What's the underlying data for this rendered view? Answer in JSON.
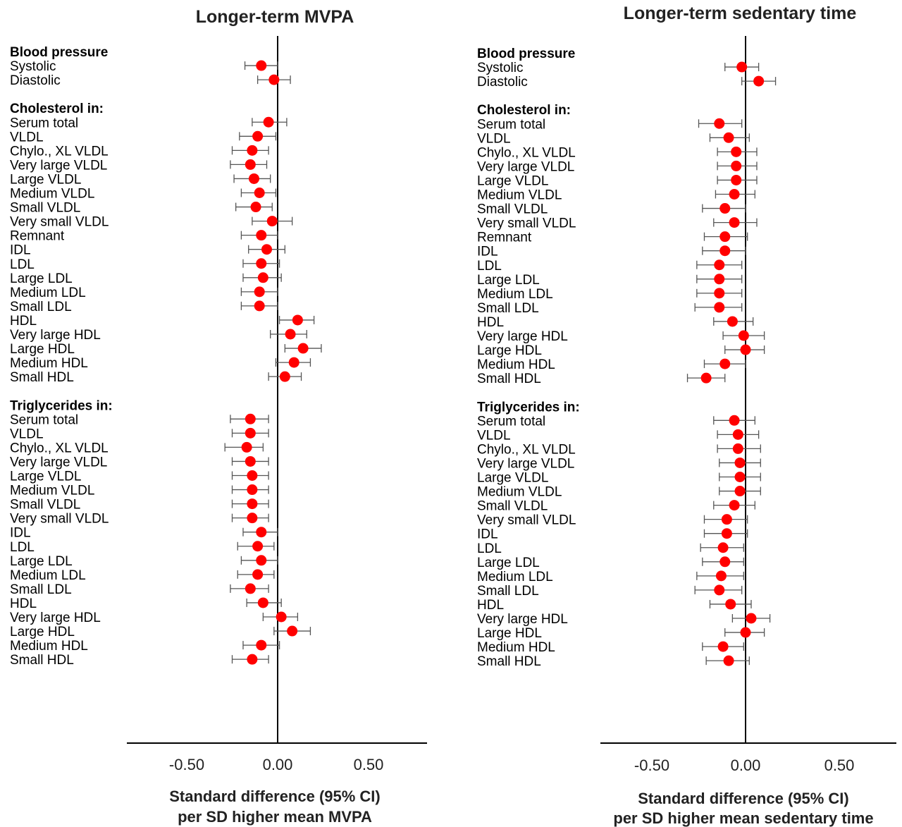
{
  "chart_data": [
    {
      "type": "forest",
      "title": "Longer-term MVPA",
      "xlabel_lines": [
        "Standard difference (95% CI)",
        "per SD higher mean MVPA"
      ],
      "xlim": [
        -0.8,
        0.8
      ],
      "xticks": [
        -0.5,
        0.0,
        0.5
      ],
      "xtick_labels": [
        "-0.50",
        "0.00",
        "0.50"
      ],
      "reference_line": 0.0,
      "marker_color": "#ff0000",
      "groups": [
        {
          "name": "Blood pressure",
          "rows": [
            {
              "label": "Systolic",
              "est": -0.09,
              "lo": -0.18,
              "hi": 0.0
            },
            {
              "label": "Diastolic",
              "est": -0.02,
              "lo": -0.11,
              "hi": 0.07
            }
          ]
        },
        {
          "name": "Cholesterol in:",
          "rows": [
            {
              "label": "Serum total",
              "est": -0.05,
              "lo": -0.14,
              "hi": 0.05
            },
            {
              "label": "VLDL",
              "est": -0.11,
              "lo": -0.21,
              "hi": -0.01
            },
            {
              "label": "Chylo., XL VLDL",
              "est": -0.14,
              "lo": -0.25,
              "hi": -0.05
            },
            {
              "label": "Very large VLDL",
              "est": -0.15,
              "lo": -0.26,
              "hi": -0.06
            },
            {
              "label": "Large VLDL",
              "est": -0.13,
              "lo": -0.24,
              "hi": -0.04
            },
            {
              "label": "Medium VLDL",
              "est": -0.1,
              "lo": -0.2,
              "hi": -0.01
            },
            {
              "label": "Small VLDL",
              "est": -0.12,
              "lo": -0.23,
              "hi": -0.03
            },
            {
              "label": "Very small VLDL",
              "est": -0.03,
              "lo": -0.14,
              "hi": 0.08
            },
            {
              "label": "Remnant",
              "est": -0.09,
              "lo": -0.2,
              "hi": 0.0
            },
            {
              "label": "IDL",
              "est": -0.06,
              "lo": -0.16,
              "hi": 0.04
            },
            {
              "label": "LDL",
              "est": -0.09,
              "lo": -0.19,
              "hi": 0.01
            },
            {
              "label": "Large LDL",
              "est": -0.08,
              "lo": -0.19,
              "hi": 0.02
            },
            {
              "label": "Medium LDL",
              "est": -0.1,
              "lo": -0.2,
              "hi": 0.0
            },
            {
              "label": "Small LDL",
              "est": -0.1,
              "lo": -0.2,
              "hi": 0.0
            },
            {
              "label": "HDL",
              "est": 0.11,
              "lo": 0.01,
              "hi": 0.2
            },
            {
              "label": "Very large HDL",
              "est": 0.07,
              "lo": -0.04,
              "hi": 0.16
            },
            {
              "label": "Large HDL",
              "est": 0.14,
              "lo": 0.04,
              "hi": 0.24
            },
            {
              "label": "Medium HDL",
              "est": 0.09,
              "lo": -0.01,
              "hi": 0.18
            },
            {
              "label": "Small HDL",
              "est": 0.04,
              "lo": -0.05,
              "hi": 0.13
            }
          ]
        },
        {
          "name": "Triglycerides in:",
          "rows": [
            {
              "label": "Serum total",
              "est": -0.15,
              "lo": -0.26,
              "hi": -0.05
            },
            {
              "label": "VLDL",
              "est": -0.15,
              "lo": -0.25,
              "hi": -0.05
            },
            {
              "label": "Chylo., XL VLDL",
              "est": -0.17,
              "lo": -0.29,
              "hi": -0.08
            },
            {
              "label": "Very large VLDL",
              "est": -0.15,
              "lo": -0.25,
              "hi": -0.05
            },
            {
              "label": "Large VLDL",
              "est": -0.14,
              "lo": -0.25,
              "hi": -0.05
            },
            {
              "label": "Medium VLDL",
              "est": -0.14,
              "lo": -0.25,
              "hi": -0.05
            },
            {
              "label": "Small VLDL",
              "est": -0.14,
              "lo": -0.25,
              "hi": -0.05
            },
            {
              "label": "Very small VLDL",
              "est": -0.14,
              "lo": -0.25,
              "hi": -0.05
            },
            {
              "label": "IDL",
              "est": -0.09,
              "lo": -0.19,
              "hi": 0.0
            },
            {
              "label": "LDL",
              "est": -0.11,
              "lo": -0.22,
              "hi": -0.02
            },
            {
              "label": "Large LDL",
              "est": -0.09,
              "lo": -0.2,
              "hi": 0.0
            },
            {
              "label": "Medium LDL",
              "est": -0.11,
              "lo": -0.22,
              "hi": -0.02
            },
            {
              "label": "Small LDL",
              "est": -0.15,
              "lo": -0.26,
              "hi": -0.05
            },
            {
              "label": "HDL",
              "est": -0.08,
              "lo": -0.17,
              "hi": 0.02
            },
            {
              "label": "Very large HDL",
              "est": 0.02,
              "lo": -0.08,
              "hi": 0.11
            },
            {
              "label": "Large HDL",
              "est": 0.08,
              "lo": -0.02,
              "hi": 0.18
            },
            {
              "label": "Medium HDL",
              "est": -0.09,
              "lo": -0.19,
              "hi": 0.01
            },
            {
              "label": "Small HDL",
              "est": -0.14,
              "lo": -0.25,
              "hi": -0.05
            }
          ]
        }
      ]
    },
    {
      "type": "forest",
      "title": "Longer-term sedentary time",
      "xlabel_lines": [
        "Standard difference (95% CI)",
        "per SD higher mean sedentary time"
      ],
      "xlim": [
        -0.8,
        0.8
      ],
      "xticks": [
        -0.5,
        0.0,
        0.5
      ],
      "xtick_labels": [
        "-0.50",
        "0.00",
        "0.50"
      ],
      "reference_line": 0.0,
      "marker_color": "#ff0000",
      "groups": [
        {
          "name": "Blood pressure",
          "rows": [
            {
              "label": "Systolic",
              "est": -0.02,
              "lo": -0.11,
              "hi": 0.07
            },
            {
              "label": "Diastolic",
              "est": 0.07,
              "lo": -0.02,
              "hi": 0.16
            }
          ]
        },
        {
          "name": "Cholesterol in:",
          "rows": [
            {
              "label": "Serum total",
              "est": -0.14,
              "lo": -0.25,
              "hi": -0.02
            },
            {
              "label": "VLDL",
              "est": -0.09,
              "lo": -0.19,
              "hi": 0.02
            },
            {
              "label": "Chylo., XL VLDL",
              "est": -0.05,
              "lo": -0.15,
              "hi": 0.06
            },
            {
              "label": "Very large VLDL",
              "est": -0.05,
              "lo": -0.15,
              "hi": 0.06
            },
            {
              "label": "Large VLDL",
              "est": -0.05,
              "lo": -0.15,
              "hi": 0.06
            },
            {
              "label": "Medium VLDL",
              "est": -0.06,
              "lo": -0.16,
              "hi": 0.05
            },
            {
              "label": "Small VLDL",
              "est": -0.11,
              "lo": -0.23,
              "hi": 0.0
            },
            {
              "label": "Very small VLDL",
              "est": -0.06,
              "lo": -0.17,
              "hi": 0.06
            },
            {
              "label": "Remnant",
              "est": -0.11,
              "lo": -0.22,
              "hi": 0.01
            },
            {
              "label": "IDL",
              "est": -0.11,
              "lo": -0.23,
              "hi": 0.0
            },
            {
              "label": "LDL",
              "est": -0.14,
              "lo": -0.26,
              "hi": -0.02
            },
            {
              "label": "Large LDL",
              "est": -0.14,
              "lo": -0.26,
              "hi": -0.02
            },
            {
              "label": "Medium LDL",
              "est": -0.14,
              "lo": -0.26,
              "hi": -0.02
            },
            {
              "label": "Small LDL",
              "est": -0.14,
              "lo": -0.27,
              "hi": -0.02
            },
            {
              "label": "HDL",
              "est": -0.07,
              "lo": -0.17,
              "hi": 0.04
            },
            {
              "label": "Very large HDL",
              "est": -0.01,
              "lo": -0.12,
              "hi": 0.1
            },
            {
              "label": "Large HDL",
              "est": 0.0,
              "lo": -0.11,
              "hi": 0.1
            },
            {
              "label": "Medium HDL",
              "est": -0.11,
              "lo": -0.22,
              "hi": 0.0
            },
            {
              "label": "Small HDL",
              "est": -0.21,
              "lo": -0.31,
              "hi": -0.11
            }
          ]
        },
        {
          "name": "Triglycerides in:",
          "rows": [
            {
              "label": "Serum total",
              "est": -0.06,
              "lo": -0.17,
              "hi": 0.05
            },
            {
              "label": "VLDL",
              "est": -0.04,
              "lo": -0.15,
              "hi": 0.07
            },
            {
              "label": "Chylo., XL VLDL",
              "est": -0.04,
              "lo": -0.15,
              "hi": 0.08
            },
            {
              "label": "Very large VLDL",
              "est": -0.03,
              "lo": -0.14,
              "hi": 0.08
            },
            {
              "label": "Large VLDL",
              "est": -0.03,
              "lo": -0.14,
              "hi": 0.08
            },
            {
              "label": "Medium VLDL",
              "est": -0.03,
              "lo": -0.14,
              "hi": 0.08
            },
            {
              "label": "Small VLDL",
              "est": -0.06,
              "lo": -0.17,
              "hi": 0.05
            },
            {
              "label": "Very small VLDL",
              "est": -0.1,
              "lo": -0.22,
              "hi": 0.01
            },
            {
              "label": "IDL",
              "est": -0.1,
              "lo": -0.22,
              "hi": 0.01
            },
            {
              "label": "LDL",
              "est": -0.12,
              "lo": -0.24,
              "hi": -0.01
            },
            {
              "label": "Large LDL",
              "est": -0.11,
              "lo": -0.23,
              "hi": -0.01
            },
            {
              "label": "Medium LDL",
              "est": -0.13,
              "lo": -0.26,
              "hi": -0.01
            },
            {
              "label": "Small LDL",
              "est": -0.14,
              "lo": -0.27,
              "hi": -0.02
            },
            {
              "label": "HDL",
              "est": -0.08,
              "lo": -0.19,
              "hi": 0.03
            },
            {
              "label": "Very large HDL",
              "est": 0.03,
              "lo": -0.07,
              "hi": 0.13
            },
            {
              "label": "Large HDL",
              "est": 0.0,
              "lo": -0.11,
              "hi": 0.1
            },
            {
              "label": "Medium HDL",
              "est": -0.12,
              "lo": -0.23,
              "hi": -0.01
            },
            {
              "label": "Small HDL",
              "est": -0.09,
              "lo": -0.21,
              "hi": 0.02
            }
          ]
        }
      ]
    }
  ]
}
